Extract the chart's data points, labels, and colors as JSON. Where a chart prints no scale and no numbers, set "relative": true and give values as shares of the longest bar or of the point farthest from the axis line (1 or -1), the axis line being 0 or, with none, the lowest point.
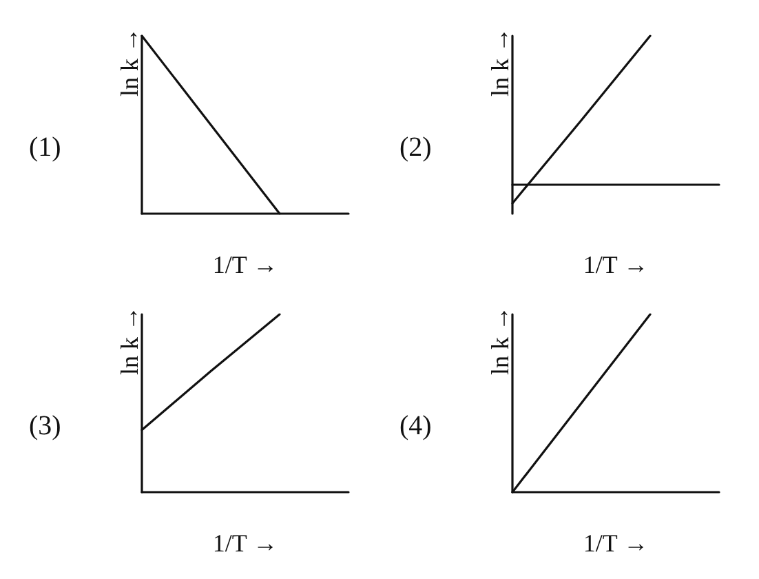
{
  "chart_data": [
    {
      "type": "line",
      "title": "(1)",
      "xlabel": "1/T →",
      "ylabel": "ln k →",
      "relative": true,
      "categories": [
        null,
        null,
        null,
        null
      ],
      "values": [
        1,
        0.5,
        0,
        null
      ],
      "color": "#111111",
      "grid": false,
      "marker": "none"
    },
    {
      "type": "line",
      "title": "(2)",
      "xlabel": "1/T →",
      "ylabel": "ln k →",
      "relative": true,
      "categories": [
        null,
        null,
        null,
        null
      ],
      "values": [
        -0.13,
        0.43,
        1,
        null
      ],
      "color": "#111111",
      "grid": false,
      "marker": "none"
    },
    {
      "type": "line",
      "title": "(3)",
      "xlabel": "1/T →",
      "ylabel": "ln k →",
      "relative": true,
      "categories": [
        null,
        null,
        null,
        null
      ],
      "values": [
        0.35,
        0.68,
        1,
        null
      ],
      "color": "#111111",
      "grid": false,
      "marker": "none"
    },
    {
      "type": "line",
      "title": "(4)",
      "xlabel": "1/T →",
      "ylabel": "ln k →",
      "relative": true,
      "categories": [
        null,
        null,
        null,
        null
      ],
      "values": [
        0,
        0.5,
        1,
        null
      ],
      "color": "#111111",
      "grid": false,
      "marker": "none"
    }
  ]
}
